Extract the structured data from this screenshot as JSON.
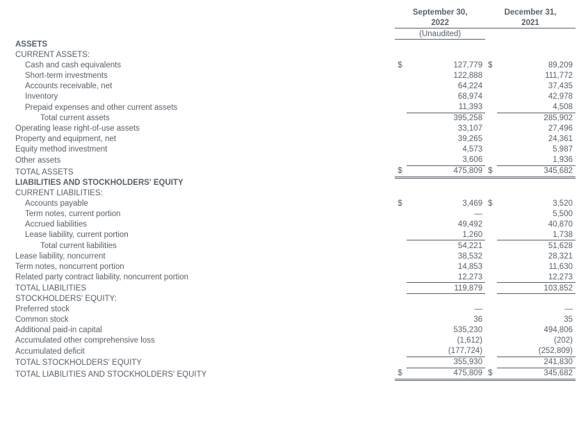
{
  "header": {
    "col1_line1": "September 30,",
    "col1_line2": "2022",
    "col1_sub": "(Unaudited)",
    "col2_line1": "December 31,",
    "col2_line2": "2021"
  },
  "currency": "$",
  "em_dash": "—",
  "sections": {
    "assets": "ASSETS",
    "current_assets": "CURRENT ASSETS:",
    "liab_se": "LIABILITIES AND STOCKHOLDERS' EQUITY",
    "current_liab": "CURRENT LIABILITIES:",
    "se": "STOCKHOLDERS' EQUITY:"
  },
  "rows": {
    "cash": {
      "label": "Cash and cash equivalents",
      "v1": "127,779",
      "v2": "89,209"
    },
    "sti": {
      "label": "Short-term investments",
      "v1": "122,888",
      "v2": "111,772"
    },
    "ar": {
      "label": "Accounts receivable, net",
      "v1": "64,224",
      "v2": "37,435"
    },
    "inv": {
      "label": "Inventory",
      "v1": "68,974",
      "v2": "42,978"
    },
    "prepaid": {
      "label": "Prepaid expenses and other current assets",
      "v1": "11,393",
      "v2": "4,508"
    },
    "tot_ca": {
      "label": "Total current assets",
      "v1": "395,258",
      "v2": "285,902"
    },
    "rou": {
      "label": "Operating lease right-of-use assets",
      "v1": "33,107",
      "v2": "27,496"
    },
    "ppe": {
      "label": "Property and equipment, net",
      "v1": "39,265",
      "v2": "24,361"
    },
    "equity_method": {
      "label": "Equity method investment",
      "v1": "4,573",
      "v2": "5,987"
    },
    "other_assets": {
      "label": "Other assets",
      "v1": "3,606",
      "v2": "1,936"
    },
    "total_assets": {
      "label": "TOTAL ASSETS",
      "v1": "475,809",
      "v2": "345,682"
    },
    "ap": {
      "label": "Accounts payable",
      "v1": "3,469",
      "v2": "3,520"
    },
    "term_cur": {
      "label": "Term notes, current portion",
      "v1": "—",
      "v2": "5,500"
    },
    "accrued": {
      "label": "Accrued liabilities",
      "v1": "49,492",
      "v2": "40,870"
    },
    "lease_cur": {
      "label": "Lease liability, current portion",
      "v1": "1,260",
      "v2": "1,738"
    },
    "tot_cl": {
      "label": "Total current liabilities",
      "v1": "54,221",
      "v2": "51,628"
    },
    "lease_nc": {
      "label": "Lease liability, noncurrent",
      "v1": "38,532",
      "v2": "28,321"
    },
    "term_nc": {
      "label": "Term notes, noncurrent portion",
      "v1": "14,853",
      "v2": "11,630"
    },
    "related": {
      "label": "Related party contract liability, noncurrent portion",
      "v1": "12,273",
      "v2": "12,273"
    },
    "total_liab": {
      "label": "TOTAL LIABILITIES",
      "v1": "119,879",
      "v2": "103,852"
    },
    "pref": {
      "label": "Preferred stock",
      "v1": "—",
      "v2": "—"
    },
    "common": {
      "label": "Common stock",
      "v1": "36",
      "v2": "35"
    },
    "apic": {
      "label": "Additional paid-in capital",
      "v1": "535,230",
      "v2": "494,806"
    },
    "aoci": {
      "label": "Accumulated other comprehensive loss",
      "v1": "(1,612)",
      "v2": "(202)"
    },
    "deficit": {
      "label": "Accumulated deficit",
      "v1": "(177,724)",
      "v2": "(252,809)"
    },
    "total_se": {
      "label": "TOTAL STOCKHOLDERS' EQUITY",
      "v1": "355,930",
      "v2": "241,830"
    },
    "total_lse": {
      "label": "TOTAL LIABILITIES AND STOCKHOLDERS' EQUITY",
      "v1": "475,809",
      "v2": "345,682"
    }
  },
  "style": {
    "text_color": "#57606a",
    "border_color": "#57606a",
    "background": "#ffffff",
    "font_size_pt": 9,
    "font_family": "Arial"
  }
}
